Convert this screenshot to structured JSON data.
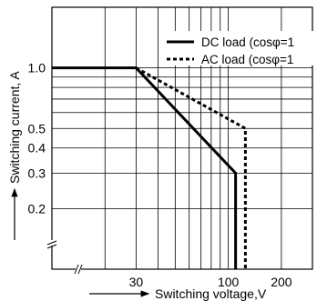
{
  "chart_data": {
    "type": "line",
    "x_scale": "log",
    "y_scale": "log",
    "xlabel": "Switching voltage,V",
    "ylabel": "Switching current, A",
    "xlim": [
      10,
      300
    ],
    "ylim": [
      0.1,
      2.0
    ],
    "x_ticks": [
      {
        "value": 30,
        "label": "30"
      },
      {
        "value": 100,
        "label": "100"
      },
      {
        "value": 200,
        "label": "200"
      }
    ],
    "y_ticks": [
      {
        "value": 1.0,
        "label": "1.0"
      },
      {
        "value": 0.5,
        "label": "0.5"
      },
      {
        "value": 0.4,
        "label": "0.4"
      },
      {
        "value": 0.3,
        "label": "0.3"
      },
      {
        "value": 0.2,
        "label": "0.2"
      }
    ],
    "x_grid": [
      20,
      30,
      40,
      50,
      60,
      70,
      80,
      90,
      100,
      200
    ],
    "y_grid": [
      0.2,
      0.3,
      0.4,
      0.5,
      0.6,
      0.7,
      0.8,
      0.9,
      1.0
    ],
    "grid": true,
    "legend_position": "top-right",
    "series": [
      {
        "name": "DC load  (cosφ=1",
        "style": "solid",
        "color": "#000000",
        "points": [
          [
            10,
            1.0
          ],
          [
            30,
            1.0
          ],
          [
            110,
            0.3
          ],
          [
            110,
            0.1
          ]
        ]
      },
      {
        "name": "AC load  (cosφ=1",
        "style": "dashed",
        "color": "#000000",
        "points": [
          [
            30,
            1.0
          ],
          [
            125,
            0.5
          ],
          [
            125,
            0.1
          ]
        ]
      }
    ]
  }
}
